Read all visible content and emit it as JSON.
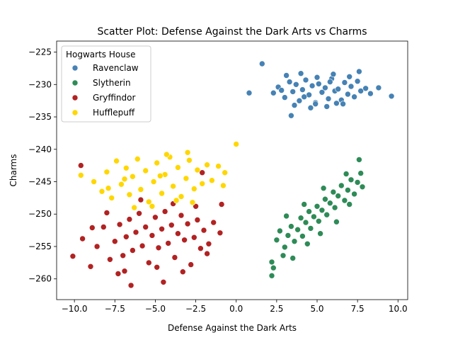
{
  "chart_data": {
    "type": "scatter",
    "title": "Scatter Plot: Defense Against the Dark Arts vs Charms",
    "xlabel": "Defense Against the Dark Arts",
    "ylabel": "Charms",
    "xlim": [
      -11.1,
      10.6
    ],
    "ylim": [
      -263.2,
      -223.3
    ],
    "xticks": [
      -10.0,
      -7.5,
      -5.0,
      -2.5,
      0.0,
      2.5,
      5.0,
      7.5,
      10.0
    ],
    "xtick_labels": [
      "−10.0",
      "−7.5",
      "−5.0",
      "−2.5",
      "0.0",
      "2.5",
      "5.0",
      "7.5",
      "10.0"
    ],
    "yticks": [
      -225,
      -230,
      -235,
      -240,
      -245,
      -250,
      -255,
      -260
    ],
    "ytick_labels": [
      "−225",
      "−230",
      "−235",
      "−240",
      "−245",
      "−250",
      "−255",
      "−260"
    ],
    "grid": false,
    "legend": {
      "title": "Hogwarts House",
      "placement": "top-left",
      "entries": [
        "Ravenclaw",
        "Slytherin",
        "Gryffindor",
        "Hufflepuff"
      ]
    },
    "series": [
      {
        "name": "Ravenclaw",
        "color": "#4682b4",
        "points": [
          [
            2.3,
            -231.3
          ],
          [
            2.6,
            -230.4
          ],
          [
            3.0,
            -232.0
          ],
          [
            3.3,
            -229.6
          ],
          [
            3.5,
            -231.1
          ],
          [
            3.7,
            -230.0
          ],
          [
            3.9,
            -232.5
          ],
          [
            4.1,
            -230.8
          ],
          [
            4.3,
            -229.3
          ],
          [
            4.5,
            -231.6
          ],
          [
            4.7,
            -230.2
          ],
          [
            4.9,
            -232.8
          ],
          [
            5.1,
            -229.9
          ],
          [
            5.3,
            -231.2
          ],
          [
            5.5,
            -230.5
          ],
          [
            5.7,
            -232.2
          ],
          [
            5.9,
            -229.1
          ],
          [
            6.1,
            -231.0
          ],
          [
            6.3,
            -230.7
          ],
          [
            6.5,
            -232.4
          ],
          [
            6.7,
            -229.7
          ],
          [
            6.9,
            -231.5
          ],
          [
            7.1,
            -230.3
          ],
          [
            7.3,
            -231.9
          ],
          [
            7.5,
            -229.5
          ],
          [
            7.7,
            -231.0
          ],
          [
            8.0,
            -230.6
          ],
          [
            8.3,
            -231.4
          ],
          [
            3.1,
            -228.6
          ],
          [
            4.0,
            -228.3
          ],
          [
            5.0,
            -228.9
          ],
          [
            6.0,
            -228.4
          ],
          [
            7.0,
            -228.8
          ],
          [
            3.6,
            -233.2
          ],
          [
            4.6,
            -233.6
          ],
          [
            5.6,
            -233.4
          ],
          [
            6.6,
            -233.0
          ],
          [
            1.6,
            -226.8
          ],
          [
            0.8,
            -231.3
          ],
          [
            9.6,
            -231.8
          ],
          [
            8.8,
            -230.5
          ],
          [
            3.4,
            -234.8
          ],
          [
            4.9,
            -233.0
          ],
          [
            2.8,
            -230.9
          ],
          [
            5.8,
            -229.6
          ],
          [
            7.6,
            -228.0
          ],
          [
            4.2,
            -231.9
          ],
          [
            6.2,
            -232.9
          ]
        ]
      },
      {
        "name": "Slytherin",
        "color": "#2e8b57",
        "points": [
          [
            2.2,
            -259.5
          ],
          [
            2.3,
            -258.3
          ],
          [
            2.2,
            -257.4
          ],
          [
            2.5,
            -254.0
          ],
          [
            2.7,
            -252.6
          ],
          [
            3.0,
            -255.1
          ],
          [
            3.2,
            -253.3
          ],
          [
            3.4,
            -251.9
          ],
          [
            3.6,
            -254.2
          ],
          [
            3.8,
            -252.4
          ],
          [
            4.0,
            -250.6
          ],
          [
            4.1,
            -253.4
          ],
          [
            4.3,
            -251.3
          ],
          [
            4.5,
            -249.6
          ],
          [
            4.6,
            -252.2
          ],
          [
            4.8,
            -250.4
          ],
          [
            5.0,
            -248.8
          ],
          [
            5.1,
            -251.1
          ],
          [
            5.3,
            -249.4
          ],
          [
            5.5,
            -247.7
          ],
          [
            5.6,
            -250.1
          ],
          [
            5.8,
            -248.3
          ],
          [
            6.0,
            -246.6
          ],
          [
            6.1,
            -249.0
          ],
          [
            6.3,
            -247.2
          ],
          [
            6.5,
            -245.6
          ],
          [
            6.7,
            -247.9
          ],
          [
            6.9,
            -246.3
          ],
          [
            7.1,
            -244.7
          ],
          [
            7.3,
            -246.9
          ],
          [
            7.5,
            -245.1
          ],
          [
            7.7,
            -243.7
          ],
          [
            7.6,
            -241.6
          ],
          [
            7.8,
            -245.8
          ],
          [
            3.5,
            -256.8
          ],
          [
            2.9,
            -256.4
          ],
          [
            4.4,
            -254.6
          ],
          [
            5.2,
            -253.0
          ],
          [
            6.2,
            -251.2
          ],
          [
            7.0,
            -248.5
          ],
          [
            4.2,
            -248.5
          ],
          [
            5.4,
            -246.0
          ],
          [
            3.1,
            -250.3
          ],
          [
            6.8,
            -243.8
          ]
        ]
      },
      {
        "name": "Gryffindor",
        "color": "#b22222",
        "points": [
          [
            -10.1,
            -256.5
          ],
          [
            -9.5,
            -253.8
          ],
          [
            -9.0,
            -258.1
          ],
          [
            -8.6,
            -255.0
          ],
          [
            -8.2,
            -252.0
          ],
          [
            -7.8,
            -257.0
          ],
          [
            -7.5,
            -254.2
          ],
          [
            -7.2,
            -251.6
          ],
          [
            -7.0,
            -256.4
          ],
          [
            -6.8,
            -253.5
          ],
          [
            -6.6,
            -250.8
          ],
          [
            -6.4,
            -255.6
          ],
          [
            -6.2,
            -252.8
          ],
          [
            -6.0,
            -249.9
          ],
          [
            -5.8,
            -254.9
          ],
          [
            -5.6,
            -252.0
          ],
          [
            -5.4,
            -257.5
          ],
          [
            -5.2,
            -253.3
          ],
          [
            -5.0,
            -250.5
          ],
          [
            -4.8,
            -255.2
          ],
          [
            -4.6,
            -252.3
          ],
          [
            -4.4,
            -249.6
          ],
          [
            -4.2,
            -254.5
          ],
          [
            -4.0,
            -251.7
          ],
          [
            -3.8,
            -256.7
          ],
          [
            -3.6,
            -253.0
          ],
          [
            -3.4,
            -250.2
          ],
          [
            -3.2,
            -254.0
          ],
          [
            -3.0,
            -251.5
          ],
          [
            -2.8,
            -257.8
          ],
          [
            -2.6,
            -253.6
          ],
          [
            -2.4,
            -250.9
          ],
          [
            -2.2,
            -255.3
          ],
          [
            -2.0,
            -252.5
          ],
          [
            -1.7,
            -254.6
          ],
          [
            -1.4,
            -251.3
          ],
          [
            -1.0,
            -252.9
          ],
          [
            -0.9,
            -248.5
          ],
          [
            -9.6,
            -242.5
          ],
          [
            -6.5,
            -261.0
          ],
          [
            -4.5,
            -260.5
          ],
          [
            -7.3,
            -259.2
          ],
          [
            -2.1,
            -243.6
          ],
          [
            -3.9,
            -248.4
          ],
          [
            -5.9,
            -247.8
          ],
          [
            -8.0,
            -249.8
          ],
          [
            -6.9,
            -258.8
          ],
          [
            -3.3,
            -258.9
          ],
          [
            -1.8,
            -256.1
          ],
          [
            -8.9,
            -252.1
          ],
          [
            -4.9,
            -258.2
          ],
          [
            -2.5,
            -248.8
          ]
        ]
      },
      {
        "name": "Hufflepuff",
        "color": "#ffd700",
        "points": [
          [
            -9.6,
            -244.0
          ],
          [
            -8.8,
            -245.0
          ],
          [
            -8.3,
            -246.5
          ],
          [
            -8.0,
            -243.5
          ],
          [
            -7.7,
            -247.5
          ],
          [
            -7.4,
            -241.8
          ],
          [
            -7.1,
            -245.4
          ],
          [
            -6.8,
            -242.9
          ],
          [
            -6.6,
            -247.0
          ],
          [
            -6.4,
            -244.2
          ],
          [
            -6.1,
            -241.5
          ],
          [
            -5.9,
            -246.2
          ],
          [
            -5.6,
            -243.3
          ],
          [
            -5.4,
            -248.1
          ],
          [
            -5.1,
            -245.0
          ],
          [
            -4.9,
            -242.1
          ],
          [
            -4.6,
            -246.8
          ],
          [
            -4.4,
            -243.9
          ],
          [
            -4.1,
            -241.2
          ],
          [
            -3.9,
            -245.7
          ],
          [
            -3.6,
            -242.8
          ],
          [
            -3.4,
            -247.3
          ],
          [
            -3.1,
            -244.5
          ],
          [
            -2.9,
            -241.7
          ],
          [
            -2.6,
            -246.1
          ],
          [
            -2.4,
            -243.2
          ],
          [
            -2.1,
            -245.3
          ],
          [
            -1.8,
            -242.4
          ],
          [
            -1.5,
            -244.8
          ],
          [
            -1.1,
            -242.6
          ],
          [
            -0.7,
            -243.6
          ],
          [
            0.0,
            -239.2
          ],
          [
            -0.8,
            -245.6
          ],
          [
            -3.0,
            -240.5
          ],
          [
            -4.3,
            -240.8
          ],
          [
            -6.3,
            -249.0
          ],
          [
            -5.2,
            -248.8
          ],
          [
            -7.9,
            -246.0
          ],
          [
            -2.7,
            -248.2
          ],
          [
            -4.7,
            -244.1
          ],
          [
            -6.9,
            -244.6
          ],
          [
            -3.7,
            -247.9
          ]
        ]
      }
    ]
  }
}
